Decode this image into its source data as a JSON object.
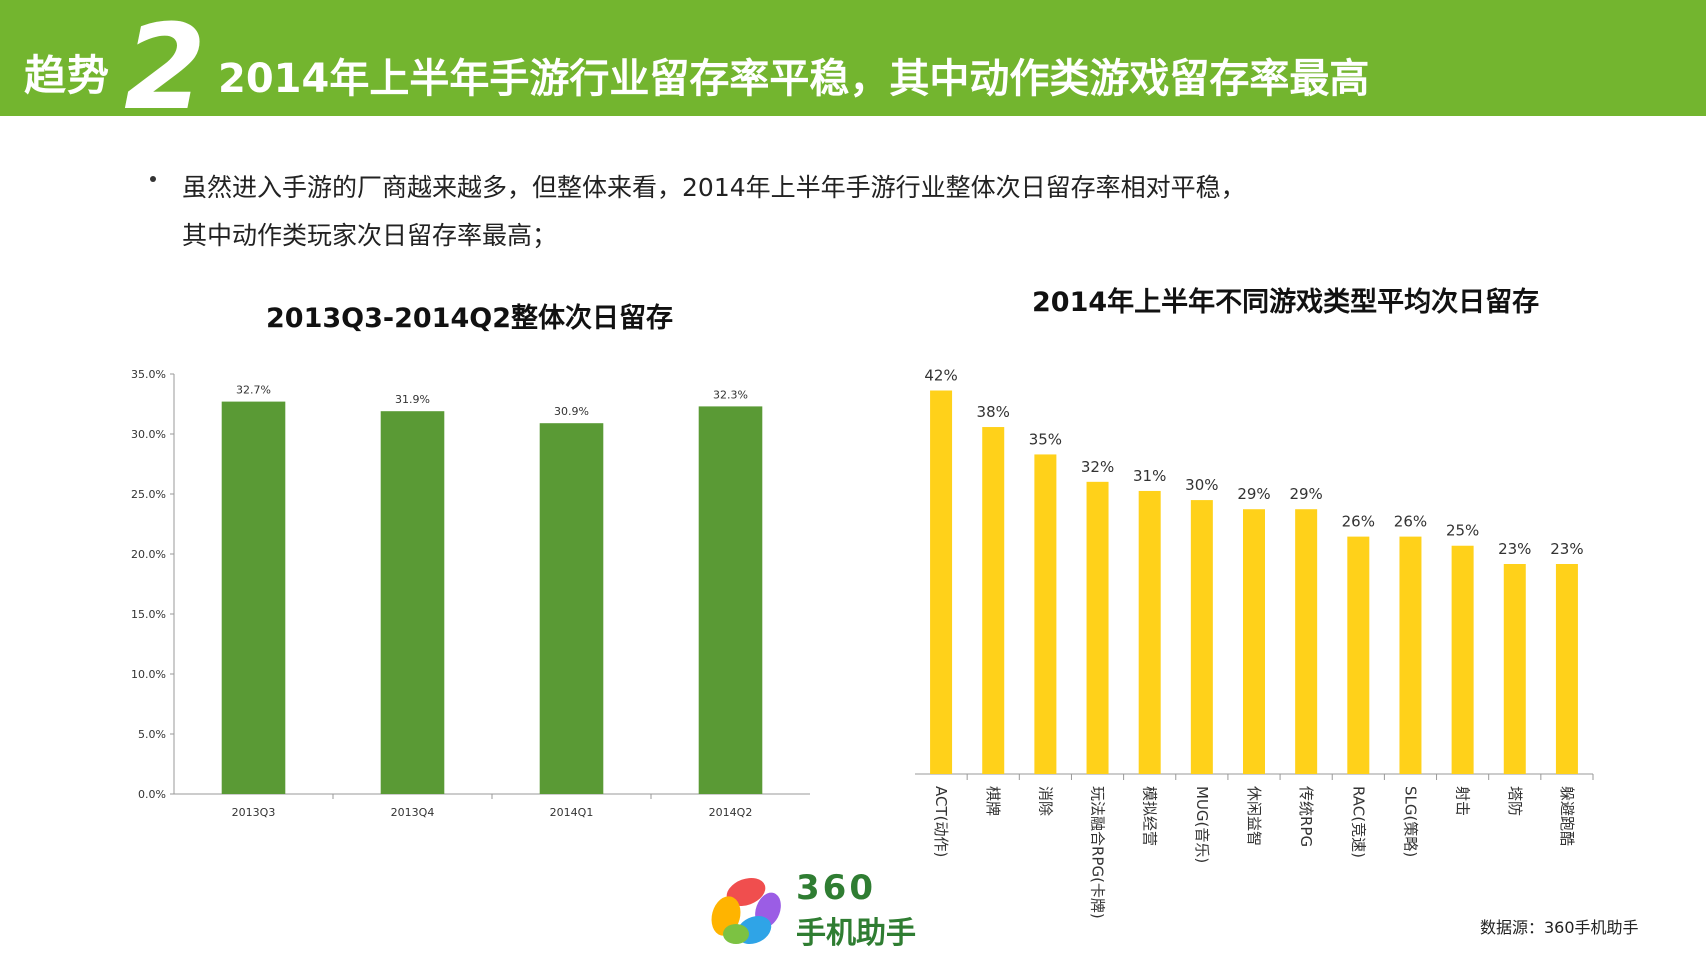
{
  "header": {
    "label": "趋势",
    "number": "2",
    "title": "2014年上半年手游行业留存率平稳，其中动作类游戏留存率最高"
  },
  "bullet": {
    "line1": "虽然进入手游的厂商越来越多，但整体来看，2014年上半年手游行业整体次日留存率相对平稳，",
    "line2": "其中动作类玩家次日留存率最高；"
  },
  "chart_data": [
    {
      "type": "bar",
      "title": "2013Q3-2014Q2整体次日留存",
      "categories": [
        "2013Q3",
        "2013Q4",
        "2014Q1",
        "2014Q2"
      ],
      "values": [
        32.7,
        31.9,
        30.9,
        32.3
      ],
      "value_labels": [
        "32.7%",
        "31.9%",
        "30.9%",
        "32.3%"
      ],
      "ylim": [
        0,
        35
      ],
      "yticks": [
        "0.0%",
        "5.0%",
        "10.0%",
        "15.0%",
        "20.0%",
        "25.0%",
        "30.0%",
        "35.0%"
      ],
      "color": "#5a9a35",
      "grid": false
    },
    {
      "type": "bar",
      "title": "2014年上半年不同游戏类型平均次日留存",
      "categories": [
        "ACT(动作)",
        "棋牌",
        "消除",
        "玩法融合RPG(卡牌)",
        "模拟经营",
        "MUG(音乐)",
        "休闲益智",
        "传统RPG",
        "RAC(竞速)",
        "SLG(策略)",
        "射击",
        "塔防",
        "躲避跑酷"
      ],
      "values": [
        42,
        38,
        35,
        32,
        31,
        30,
        29,
        29,
        26,
        26,
        25,
        23,
        23
      ],
      "value_labels": [
        "42%",
        "38%",
        "35%",
        "32%",
        "31%",
        "30%",
        "29%",
        "29%",
        "26%",
        "26%",
        "25%",
        "23%",
        "23%"
      ],
      "color": "#ffd11a",
      "grid": false
    }
  ],
  "footer": {
    "logo_top": "360",
    "logo_bottom": "手机助手",
    "source": "数据源：360手机助手"
  },
  "colors": {
    "banner": "#73b52f",
    "left_bar": "#5a9a35",
    "right_bar": "#ffd11a"
  }
}
